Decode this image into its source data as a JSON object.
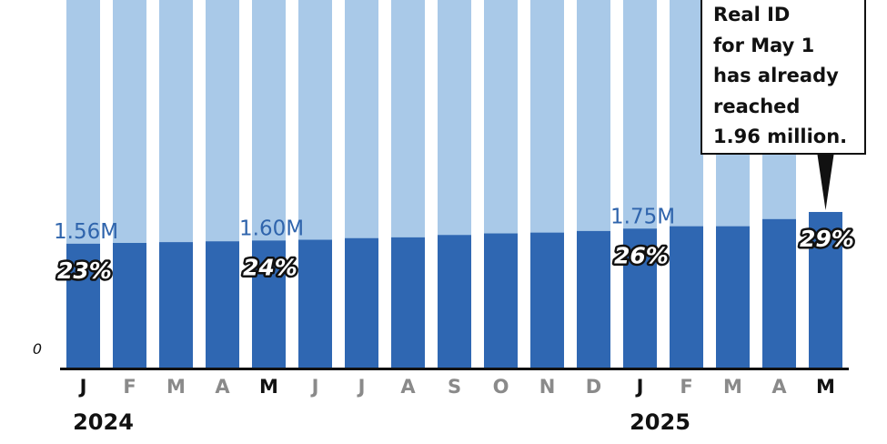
{
  "chart_data": {
    "type": "bar",
    "categories": [
      "J",
      "F",
      "M",
      "A",
      "M",
      "J",
      "J",
      "A",
      "S",
      "O",
      "N",
      "D",
      "J",
      "F",
      "M",
      "A",
      "M"
    ],
    "category_emphasis": [
      true,
      false,
      false,
      false,
      true,
      false,
      false,
      false,
      false,
      false,
      false,
      false,
      true,
      false,
      false,
      false,
      true
    ],
    "year_labels": [
      {
        "label": "2024",
        "index": 0
      },
      {
        "label": "2025",
        "index": 12
      }
    ],
    "series": [
      {
        "values": [
          1.56,
          1.57,
          1.58,
          1.59,
          1.6,
          1.61,
          1.63,
          1.64,
          1.67,
          1.69,
          1.7,
          1.72,
          1.75,
          1.78,
          1.78,
          1.87,
          1.96
        ]
      }
    ],
    "background_bar_full": [
      true,
      true,
      true,
      true,
      true,
      true,
      true,
      true,
      true,
      true,
      true,
      true,
      true,
      true,
      true,
      true,
      false
    ],
    "data_labels": [
      {
        "index": 0,
        "value": "1.56M",
        "percent": "23%"
      },
      {
        "index": 4,
        "value": "1.60M",
        "percent": "24%"
      },
      {
        "index": 12,
        "value": "1.75M",
        "percent": "26%"
      },
      {
        "index": 16,
        "value": "",
        "percent": "29%"
      }
    ],
    "y_tick_labels": [
      "0"
    ],
    "ylim": [
      0,
      4.63
    ],
    "annotation": {
      "index": 16,
      "lines": [
        "Real ID",
        "for May 1",
        "has already",
        "reached",
        "1.96 million."
      ]
    },
    "colors": {
      "bar": "#2f67b2",
      "background_bar": "#a9c9e8",
      "value_label": "#2f64ac",
      "axis": "#111111",
      "month_emphasis": "#111111",
      "month_muted": "#8a8a8a"
    }
  }
}
